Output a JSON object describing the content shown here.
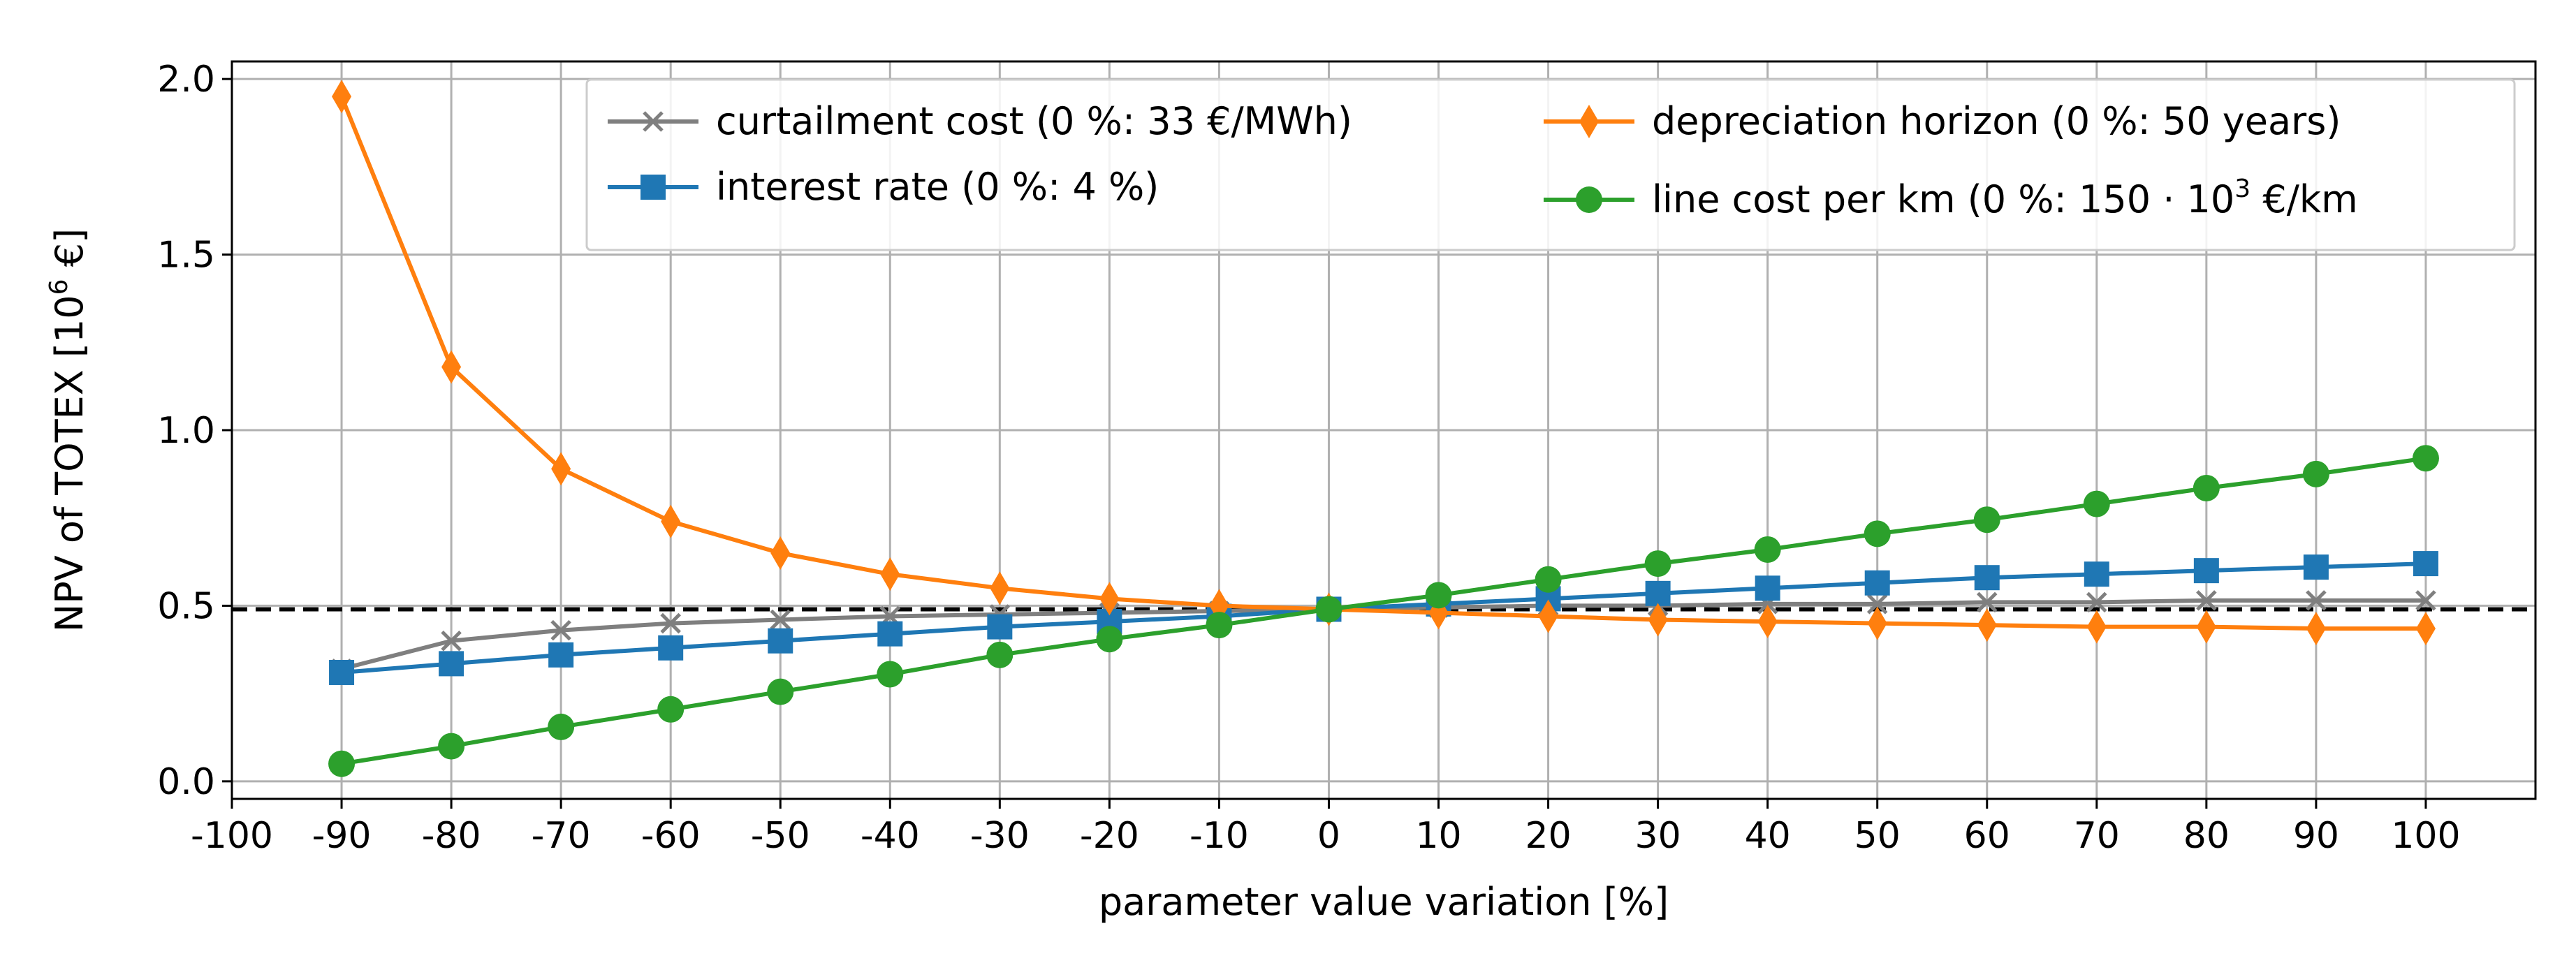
{
  "chart_data": {
    "type": "line",
    "xlabel": "parameter value variation [%]",
    "ylabel": {
      "main": "NPV of TOTEX [10",
      "sup": "6",
      "tail": " €]"
    },
    "xlim": [
      -100,
      110
    ],
    "ylim": [
      -0.05,
      2.05
    ],
    "x_ticks": [
      -100,
      -90,
      -80,
      -70,
      -60,
      -50,
      -40,
      -30,
      -20,
      -10,
      0,
      10,
      20,
      30,
      40,
      50,
      60,
      70,
      80,
      90,
      100
    ],
    "x_tick_labels": [
      "-100",
      "-90",
      "-80",
      "-70",
      "-60",
      "-50",
      "-40",
      "-30",
      "-20",
      "-10",
      "0",
      "10",
      "20",
      "30",
      "40",
      "50",
      "60",
      "70",
      "80",
      "90",
      "100"
    ],
    "y_ticks": [
      0.0,
      0.5,
      1.0,
      1.5,
      2.0
    ],
    "y_tick_labels": [
      "0.0",
      "0.5",
      "1.0",
      "1.5",
      "2.0"
    ],
    "grid": true,
    "reference_line": {
      "y": 0.49,
      "style": "dashed",
      "color": "#000000"
    },
    "x": [
      -90,
      -80,
      -70,
      -60,
      -50,
      -40,
      -30,
      -20,
      -10,
      0,
      10,
      20,
      30,
      40,
      50,
      60,
      70,
      80,
      90,
      100
    ],
    "legend_position": "upper-right",
    "series": [
      {
        "name": "curtailment cost",
        "legend": {
          "main": "curtailment cost (0 %: 33 €/MWh)"
        },
        "color": "#7f7f7f",
        "marker": "x",
        "values": [
          0.32,
          0.4,
          0.43,
          0.45,
          0.46,
          0.47,
          0.475,
          0.48,
          0.485,
          0.49,
          0.495,
          0.5,
          0.5,
          0.505,
          0.505,
          0.51,
          0.51,
          0.515,
          0.515,
          0.515
        ]
      },
      {
        "name": "interest rate",
        "legend": {
          "main": "interest rate (0 %: 4 %)"
        },
        "color": "#1f77b4",
        "marker": "square",
        "values": [
          0.31,
          0.335,
          0.36,
          0.38,
          0.4,
          0.42,
          0.44,
          0.455,
          0.47,
          0.49,
          0.505,
          0.52,
          0.535,
          0.55,
          0.565,
          0.58,
          0.59,
          0.6,
          0.61,
          0.62
        ]
      },
      {
        "name": "depreciation horizon",
        "legend": {
          "main": "depreciation horizon (0 %: 50 years)"
        },
        "color": "#ff7f0e",
        "marker": "diamond",
        "values": [
          1.95,
          1.18,
          0.89,
          0.74,
          0.65,
          0.59,
          0.55,
          0.52,
          0.5,
          0.49,
          0.48,
          0.47,
          0.46,
          0.455,
          0.45,
          0.445,
          0.44,
          0.44,
          0.435,
          0.435
        ]
      },
      {
        "name": "line cost per km",
        "legend": {
          "main": "line cost per km (0 %: 150 · 10",
          "sup": "3",
          "tail": " €/km"
        },
        "color": "#2ca02c",
        "marker": "circle",
        "values": [
          0.05,
          0.1,
          0.155,
          0.205,
          0.255,
          0.305,
          0.36,
          0.405,
          0.445,
          0.49,
          0.53,
          0.575,
          0.62,
          0.66,
          0.705,
          0.745,
          0.79,
          0.835,
          0.875,
          0.92
        ]
      }
    ]
  }
}
